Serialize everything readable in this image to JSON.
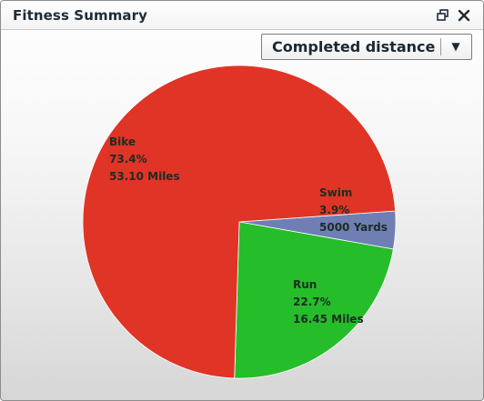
{
  "window": {
    "title": "Fitness Summary"
  },
  "controls": {
    "metric_selected": "Completed distance",
    "dropdown_arrow": "▼"
  },
  "icons": {
    "restore": "restore-window-icon",
    "close": "close-icon",
    "dropdown": "chevron-down-icon"
  },
  "chart_data": {
    "type": "pie",
    "title": "",
    "legend": "none",
    "slices": [
      {
        "name": "Swim",
        "percent": "3.9%",
        "distance": "5000 Yards",
        "value": 3.9,
        "color": "#6f7fb4"
      },
      {
        "name": "Run",
        "percent": "22.7%",
        "distance": "16.45 Miles",
        "value": 22.7,
        "color": "#26bd2a"
      },
      {
        "name": "Bike",
        "percent": "73.4%",
        "distance": "53.10 Miles",
        "value": 73.4,
        "color": "#e03426"
      }
    ]
  }
}
